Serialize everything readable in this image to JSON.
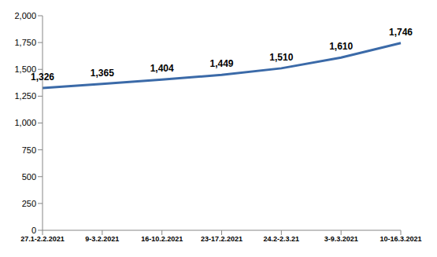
{
  "chart_data": {
    "type": "line",
    "categories": [
      "27.1-2.2.2021",
      "9-3.2.2021",
      "16-10.2.2021",
      "23-17.2.2021",
      "24.2-2.3.21",
      "3-9.3.2021",
      "10-16.3.2021"
    ],
    "values": [
      1326,
      1365,
      1404,
      1449,
      1510,
      1610,
      1746
    ],
    "value_labels": [
      "1,326",
      "1,365",
      "1,404",
      "1,449",
      "1,510",
      "1,610",
      "1,746"
    ],
    "color": "#3b6aa8",
    "ylim": [
      0,
      2000
    ],
    "yticks": [
      0,
      250,
      500,
      750,
      {
        "value": 1000,
        "label": "1,000"
      },
      {
        "value": 1250,
        "label": "1,250"
      },
      {
        "value": 1500,
        "label": "1,500"
      },
      {
        "value": 1750,
        "label": "1,750"
      },
      {
        "value": 2000,
        "label": "2,000"
      }
    ],
    "grid": false,
    "data_labels": true,
    "marker": "none"
  }
}
